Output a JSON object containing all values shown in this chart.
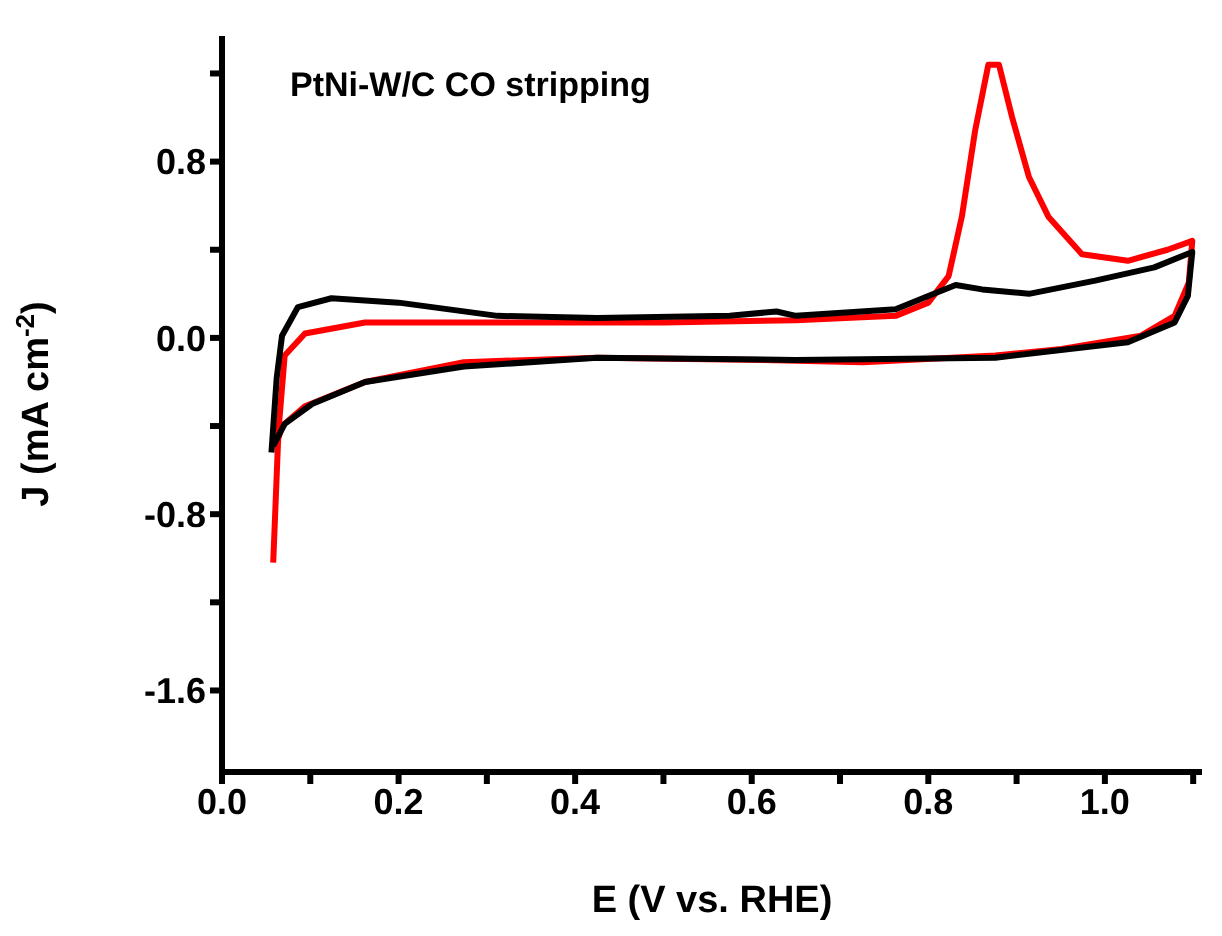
{
  "chart_data": {
    "type": "line",
    "xlabel": "E (V vs. RHE)",
    "ylabel": "J (mA cm$^{-2}$)",
    "annotations": [
      "PtNi-W/C CO stripping"
    ],
    "xlim": [
      0,
      1.11
    ],
    "ylim": [
      -1.97,
      1.37
    ],
    "xticks": [
      {
        "value": 0.0,
        "label": "0.0"
      },
      {
        "value": 0.1,
        "label": null
      },
      {
        "value": 0.2,
        "label": "0.2"
      },
      {
        "value": 0.3,
        "label": null
      },
      {
        "value": 0.4,
        "label": "0.4"
      },
      {
        "value": 0.5,
        "label": null
      },
      {
        "value": 0.6,
        "label": "0.6"
      },
      {
        "value": 0.7,
        "label": null
      },
      {
        "value": 0.8,
        "label": "0.8"
      },
      {
        "value": 0.9,
        "label": null
      },
      {
        "value": 1.0,
        "label": "1.0"
      },
      {
        "value": 1.1,
        "label": null
      }
    ],
    "yticks": [
      {
        "value": -1.6,
        "label": "-1.6"
      },
      {
        "value": -1.2,
        "label": null
      },
      {
        "value": -0.8,
        "label": "-0.8"
      },
      {
        "value": -0.4,
        "label": null
      },
      {
        "value": 0.0,
        "label": "0.0"
      },
      {
        "value": 0.4,
        "label": null
      },
      {
        "value": 0.8,
        "label": "0.8"
      },
      {
        "value": 1.2,
        "label": null
      }
    ],
    "series": [
      {
        "color": "#ff0000",
        "x": [
          0.058,
          0.064,
          0.071,
          0.094,
          0.162,
          0.312,
          0.5,
          0.65,
          0.763,
          0.8,
          0.823,
          0.838,
          0.853,
          0.868,
          0.88,
          0.895,
          0.914,
          0.936,
          0.974,
          1.026,
          1.071,
          1.099,
          1.095,
          1.079,
          1.041,
          0.951,
          0.876,
          0.726,
          0.613,
          0.425,
          0.274,
          0.162,
          0.094,
          0.068,
          0.062
        ],
        "values": [
          -1.02,
          -0.42,
          -0.08,
          0.02,
          0.07,
          0.07,
          0.07,
          0.08,
          0.1,
          0.16,
          0.28,
          0.55,
          0.94,
          1.24,
          1.24,
          1.0,
          0.73,
          0.55,
          0.38,
          0.35,
          0.4,
          0.44,
          0.25,
          0.1,
          0.01,
          -0.05,
          -0.08,
          -0.11,
          -0.1,
          -0.09,
          -0.11,
          -0.2,
          -0.31,
          -0.4,
          -0.48
        ]
      },
      {
        "color": "#000000",
        "x": [
          0.056,
          0.062,
          0.068,
          0.086,
          0.124,
          0.2,
          0.312,
          0.425,
          0.575,
          0.628,
          0.65,
          0.763,
          0.8,
          0.831,
          0.861,
          0.914,
          0.989,
          1.056,
          1.099,
          1.094,
          1.079,
          1.026,
          0.876,
          0.65,
          0.425,
          0.274,
          0.162,
          0.102,
          0.071,
          0.058
        ],
        "values": [
          -0.52,
          -0.18,
          0.01,
          0.14,
          0.18,
          0.16,
          0.1,
          0.09,
          0.1,
          0.12,
          0.1,
          0.13,
          0.19,
          0.24,
          0.22,
          0.2,
          0.26,
          0.32,
          0.39,
          0.19,
          0.07,
          -0.02,
          -0.09,
          -0.1,
          -0.09,
          -0.13,
          -0.2,
          -0.3,
          -0.39,
          -0.49
        ]
      }
    ]
  }
}
